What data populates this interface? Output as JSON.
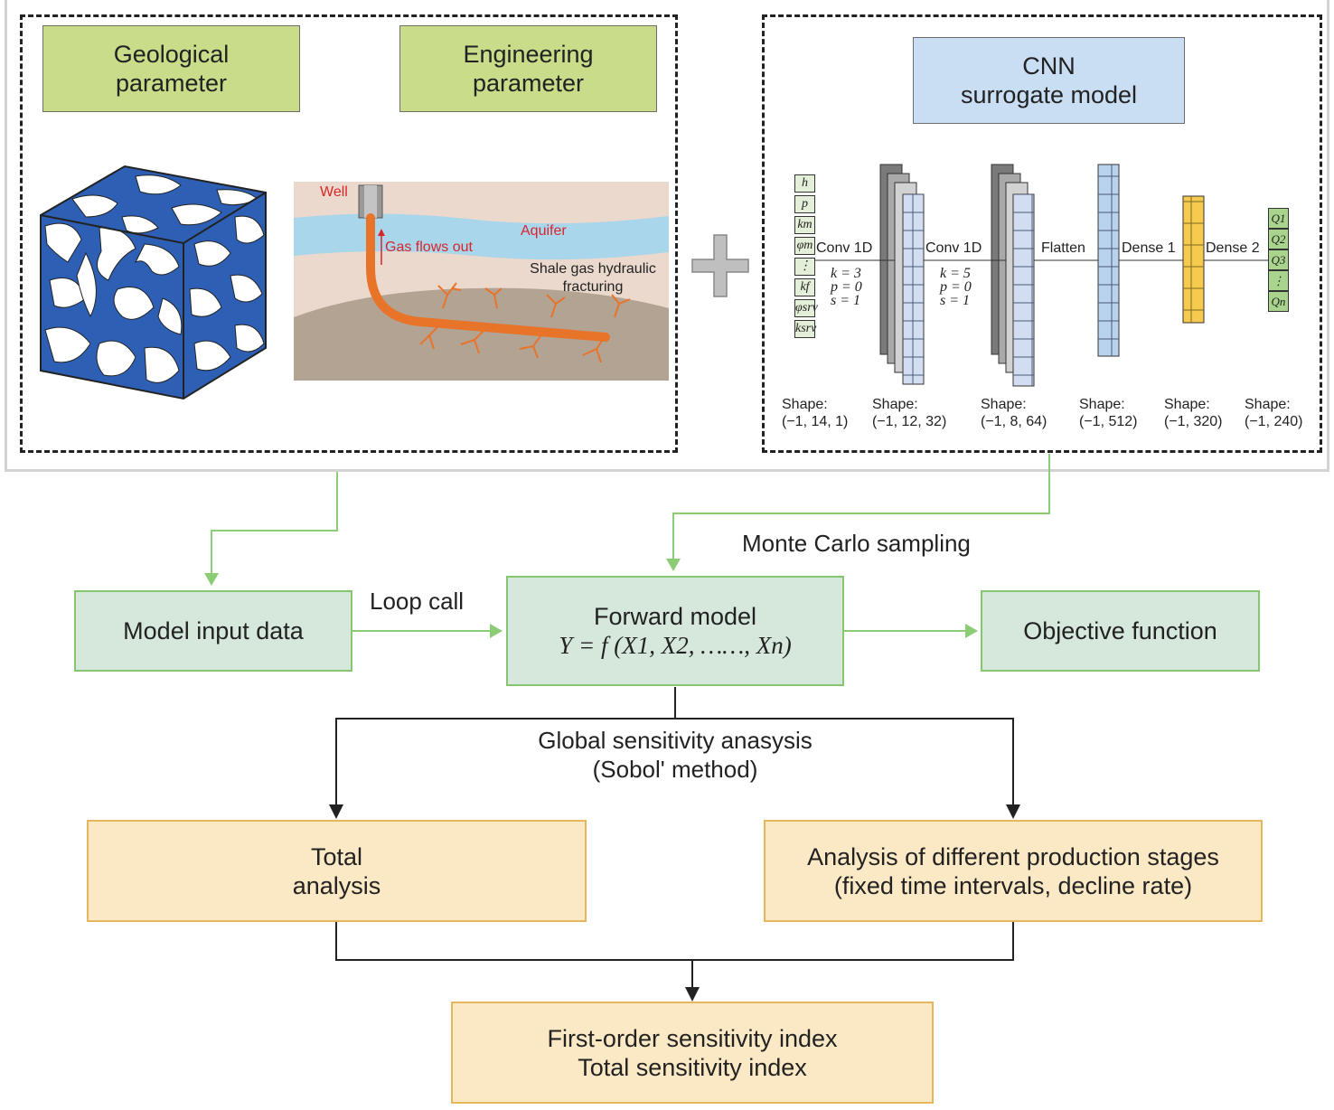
{
  "top_left": {
    "geological_label": "Geological\nparameter",
    "engineering_label": "Engineering\nparameter",
    "well_label": "Well",
    "gas_flow_label": "Gas flows out",
    "aquifer_label": "Aquifer",
    "fracturing_label": "Shale gas hydraulic\nfracturing"
  },
  "top_right": {
    "title": "CNN\nsurrogate model",
    "inputs": [
      "h",
      "p",
      "km",
      "φm",
      "⋮",
      "kf",
      "φsrv",
      "ksrv"
    ],
    "outputs": [
      "Q1",
      "Q2",
      "Q3",
      "⋮",
      "Qn"
    ],
    "layers": [
      {
        "name": "Conv 1D",
        "params": [
          "k = 3",
          "p = 0",
          "s = 1"
        ]
      },
      {
        "name": "Conv 1D",
        "params": [
          "k = 5",
          "p = 0",
          "s = 1"
        ]
      },
      {
        "name": "Flatten"
      },
      {
        "name": "Dense 1"
      },
      {
        "name": "Dense 2"
      }
    ],
    "shapes": [
      "Shape:\n(−1, 14, 1)",
      "Shape:\n(−1, 12, 32)",
      "Shape:\n(−1, 8, 64)",
      "Shape:\n(−1, 512)",
      "Shape:\n(−1, 320)",
      "Shape:\n(−1, 240)"
    ]
  },
  "flow": {
    "monte_carlo": "Monte Carlo sampling",
    "loop_call": "Loop call",
    "model_input": "Model input data",
    "forward_model": "Forward model",
    "forward_eq": "Y = f (X1, X2, ……, Xn)",
    "objective": "Objective function",
    "gsa": "Global sensitivity anasysis\n(Sobol' method)",
    "total_analysis": "Total\nanalysis",
    "stages_analysis": "Analysis of different production stages\n(fixed time intervals, decline rate)",
    "indices": "First-order sensitivity index\nTotal sensitivity index"
  },
  "colors": {
    "green_header": "#c8dc8a",
    "blue_header": "#c9def3",
    "flow_green": "#d6e8dc",
    "flow_green_border": "#85c66f",
    "flow_yellow": "#fbe8c4",
    "flow_yellow_border": "#e6b65e",
    "dense1": "#f6c94f",
    "output": "#a9d48d",
    "pipe": "#e8742a",
    "aquifer": "#a9d6ea",
    "red_text": "#d9252b"
  }
}
